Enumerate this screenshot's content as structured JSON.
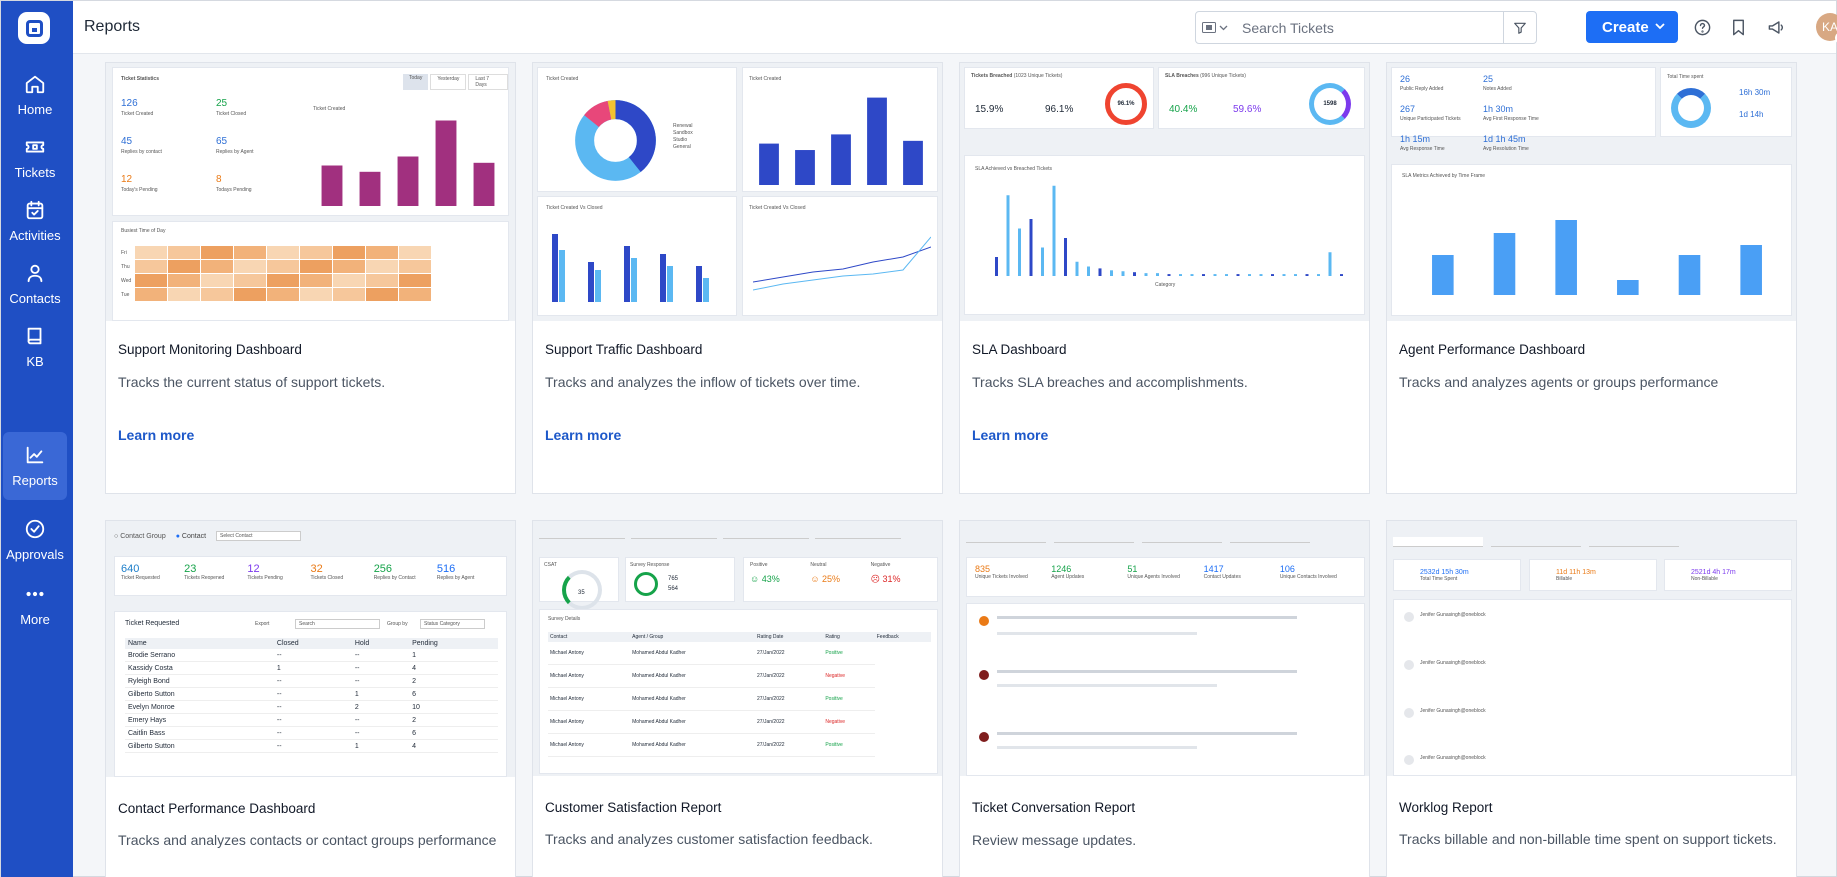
{
  "app": {
    "page_title": "Reports"
  },
  "sidebar": {
    "items": [
      {
        "label": "Home",
        "icon": "home-icon"
      },
      {
        "label": "Tickets",
        "icon": "ticket-icon"
      },
      {
        "label": "Activities",
        "icon": "calendar-icon"
      },
      {
        "label": "Contacts",
        "icon": "person-icon"
      },
      {
        "label": "KB",
        "icon": "book-icon"
      },
      {
        "label": "Reports",
        "icon": "chart-icon",
        "active": true
      },
      {
        "label": "Approvals",
        "icon": "check-circle-icon"
      },
      {
        "label": "More",
        "icon": "more-dots-icon"
      }
    ]
  },
  "header": {
    "search_placeholder": "Search Tickets",
    "create_label": "Create",
    "avatar_initials": "KA"
  },
  "cards": [
    {
      "title": "Support Monitoring Dashboard",
      "description": "Tracks the current status of support tickets.",
      "link": "Learn more",
      "preview": {
        "heading": "Ticket Statistics",
        "stats": [
          [
            "126",
            "Ticket Created"
          ],
          [
            "25",
            "Ticket Closed"
          ],
          [
            "45",
            "Replies by contact"
          ],
          [
            "65",
            "Replies by Agent"
          ],
          [
            "12",
            "Today's Pending"
          ],
          [
            "8",
            "Todays Pending"
          ]
        ],
        "chart_label": "Ticket Created",
        "tabs": [
          "Today",
          "Yesterday",
          "Last 7 Days"
        ],
        "heatmap_label": "Busiest Time of Day",
        "rows": [
          "Fri",
          "Thu",
          "Wed",
          "Tue"
        ],
        "bars": [
          0.45,
          0.38,
          0.55,
          0.95,
          0.48
        ]
      }
    },
    {
      "title": "Support Traffic Dashboard",
      "description": "Tracks and analyzes the inflow of tickets over time.",
      "link": "Learn more",
      "preview": {
        "p1": "Ticket Created",
        "p2": "Ticket Created",
        "p3": "Ticket Created Vs Closed",
        "p4": "Ticket Created Vs Closed",
        "legend": [
          "Renewal",
          "Sandbox",
          "Studio",
          "General"
        ],
        "bars": [
          0.45,
          0.38,
          0.55,
          0.95,
          0.48
        ]
      }
    },
    {
      "title": "SLA Dashboard",
      "description": "Tracks SLA breaches and accomplishments.",
      "link": "Learn more",
      "preview": {
        "breached": "Tickets Breached",
        "unique": "(1023 Unique Tickets)",
        "sla_achieved": "15.9%",
        "sla_breached": "96.1%",
        "ring1": "96.1%",
        "breaches": "SLA Breaches",
        "unique2": "(996 Unique Tickets)",
        "response": "40.4%",
        "resolution": "59.6%",
        "ring2": "1598",
        "chart_title": "SLA Achieved vs Breached Tickets",
        "xlabel": "Category"
      }
    },
    {
      "title": "Agent Performance Dashboard",
      "description": "Tracks and analyzes agents or groups performance",
      "link": null,
      "preview": {
        "m": [
          "26",
          "25",
          "267",
          "1h 30m",
          "1h 15m",
          "1d 1h 45m"
        ],
        "ml": [
          "Public Reply Added",
          "Notes Added",
          "Unique Participated Tickets",
          "Avg First Response Time",
          "Avg Response Time",
          "Avg Resolution Time"
        ],
        "total": "Total Time spent",
        "t1": "16h 30m",
        "t2": "1d 14h",
        "chart_title": "SLA Metrics Achieved by Time Frame",
        "bars": [
          0.4,
          0.62,
          0.75,
          0.15,
          0.4,
          0.5
        ]
      }
    },
    {
      "title": "Contact Performance Dashboard",
      "description": "Tracks and analyzes contacts or contact groups performance",
      "link": null,
      "preview": {
        "contact_group": "Contact Group",
        "contact": "Contact",
        "select": "Select Contact",
        "stats": [
          [
            "640",
            "Ticket Requested"
          ],
          [
            "23",
            "Tickets Reopened"
          ],
          [
            "12",
            "Tickets Pending"
          ],
          [
            "32",
            "Tickets Closed"
          ],
          [
            "256",
            "Replies by Contact"
          ],
          [
            "516",
            "Replies by Agent"
          ]
        ],
        "table_title": "Ticket Requested",
        "export": "Export",
        "search": "Search",
        "group_by": "Group by",
        "group_val": "Status Category",
        "cols": [
          "Name",
          "Closed",
          "Hold",
          "Pending"
        ],
        "rows": [
          [
            "Brodie Serrano",
            "--",
            "--",
            "1"
          ],
          [
            "Kassidy Costa",
            "1",
            "--",
            "4"
          ],
          [
            "Ryleigh Bond",
            "--",
            "--",
            "2"
          ],
          [
            "Gilberto Sutton",
            "--",
            "1",
            "6"
          ],
          [
            "Evelyn Monroe",
            "--",
            "2",
            "10"
          ],
          [
            "Emery Hays",
            "--",
            "--",
            "2"
          ],
          [
            "Caitlin Bass",
            "--",
            "--",
            "6"
          ],
          [
            "Gilberto Sutton",
            "--",
            "1",
            "4"
          ]
        ]
      }
    },
    {
      "title": "Customer Satisfaction Report",
      "description": "Tracks and analyzes customer satisfaction feedback.",
      "link": null,
      "preview": {
        "csat": "CSAT",
        "csat_val": "35",
        "survey": "Survey Response",
        "sent": "765",
        "responded": "564",
        "pos": "43%",
        "neu": "25%",
        "neg": "31%",
        "pos_l": "Positive",
        "neu_l": "Neutral",
        "neg_l": "Negative",
        "details": "Survey Details",
        "cols": [
          "Contact",
          "Agent / Group",
          "Rating Date",
          "Rating",
          "Feedback"
        ],
        "rows": [
          [
            "Michael Antony",
            "Mohamed Abdul Kadher",
            "27/Jan/2022",
            "Positive"
          ],
          [
            "Michael Antony",
            "Mohamed Abdul Kadher",
            "27/Jan/2022",
            "Negative"
          ],
          [
            "Michael Antony",
            "Mohamed Abdul Kadher",
            "27/Jan/2022",
            "Positive"
          ],
          [
            "Michael Antony",
            "Mohamed Abdul Kadher",
            "27/Jan/2022",
            "Negative"
          ],
          [
            "Michael Antony",
            "Mohamed Abdul Kadher",
            "27/Jan/2022",
            "Positive"
          ]
        ]
      }
    },
    {
      "title": "Ticket Conversation Report",
      "description": "Review message updates.",
      "link": null,
      "preview": {
        "s": [
          [
            "835",
            "Unique Tickets Involved"
          ],
          [
            "1246",
            "Agent Updates"
          ],
          [
            "51",
            "Unique Agents Involved"
          ],
          [
            "1417",
            "Contact Updates"
          ],
          [
            "106",
            "Unique Contacts Involved"
          ]
        ]
      }
    },
    {
      "title": "Worklog Report",
      "description": "Tracks billable and non-billable time spent on support tickets.",
      "link": null,
      "preview": {
        "t": [
          [
            "2532d 15h 30m",
            "Total Time Spent"
          ],
          [
            "11d 11h 13m",
            "Billable"
          ],
          [
            "2521d 4h 17m",
            "Non-Billable"
          ]
        ],
        "entries": [
          "Jenifer Gunasingh@oneblock",
          "Jenifer Gunasingh@oneblock",
          "Jenifer Gunasingh@oneblock",
          "Jenifer Gunasingh@oneblock"
        ]
      }
    }
  ],
  "colors": {
    "sidebar": "#1f4fc4",
    "active": "#3a68d6",
    "primary": "#1d6ef5",
    "purple": "#a1307f",
    "blue": "#2e48c7"
  }
}
